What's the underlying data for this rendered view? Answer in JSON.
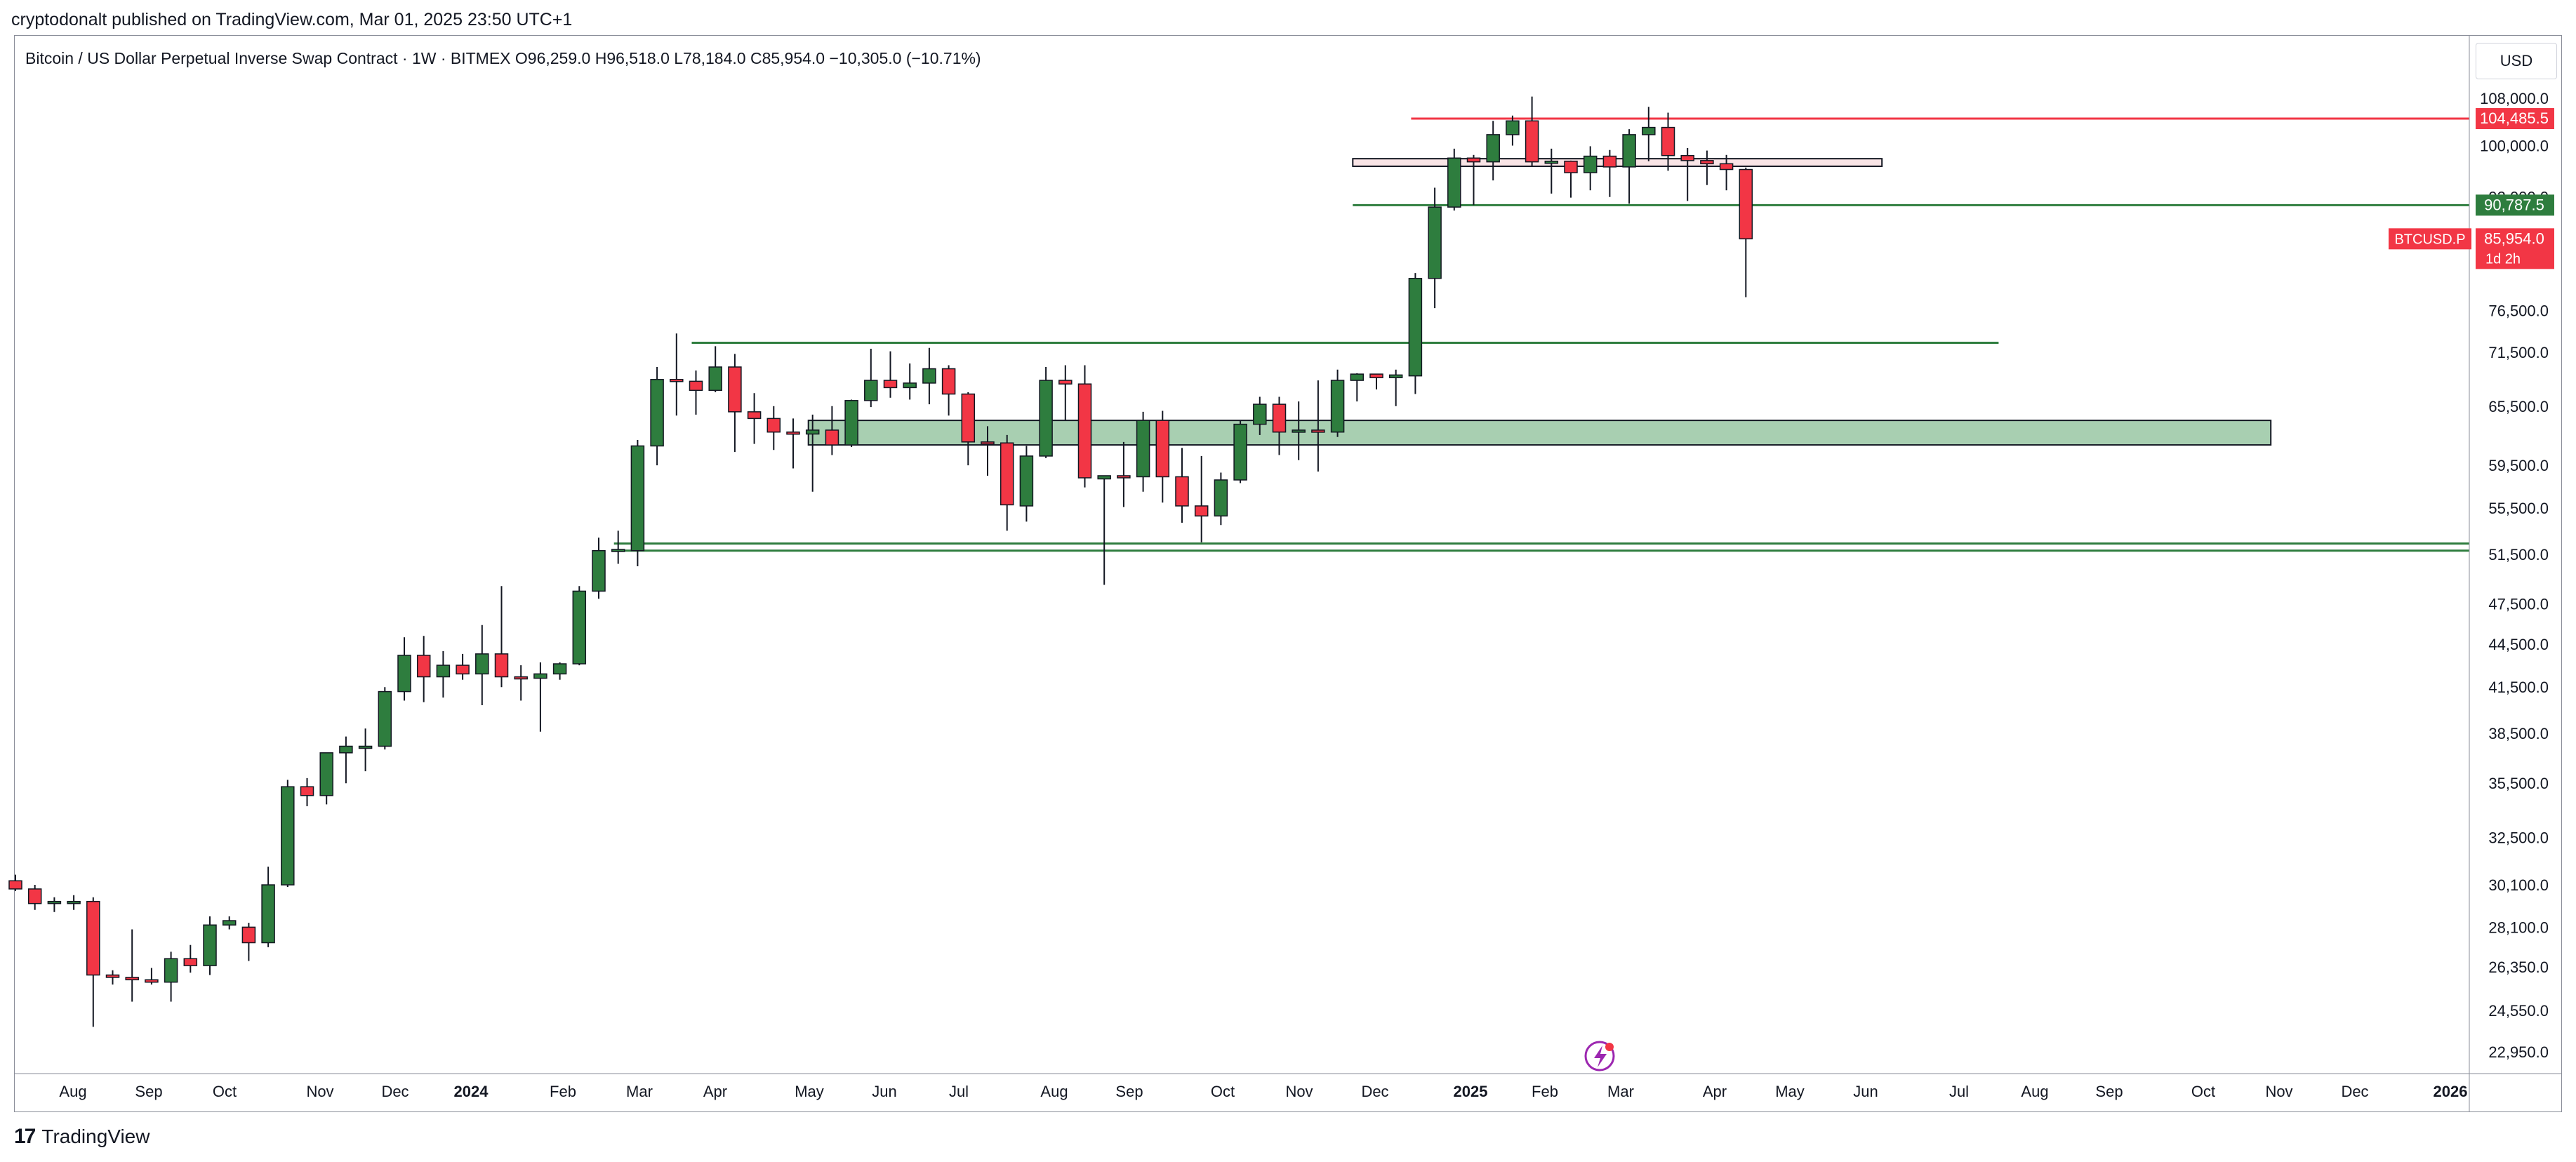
{
  "header": {
    "published": "cryptodonalt published on TradingView.com, Mar 01, 2025 23:50 UTC+1"
  },
  "symbol_info": {
    "text": "Bitcoin / US Dollar Perpetual Inverse Swap Contract · 1W · BITMEX  O96,259.0  H96,518.0  L78,184.0  C85,954.0  −10,305.0 (−10.71%)"
  },
  "currency_button": "USD",
  "footer": {
    "brand": "TradingView",
    "logo_glyph": "17"
  },
  "colors": {
    "up": "#2e7d3e",
    "down": "#f23645",
    "line_green": "#2e7d3e",
    "line_red": "#f23645",
    "zone_fill": "#a8cfb1",
    "axis_text": "#131722"
  },
  "chart_data": {
    "type": "candlestick",
    "interval": "1W",
    "y_scale": "log",
    "yticks": [
      "108,000.0",
      "100,000.0",
      "92,000.0",
      "76,500.0",
      "71,500.0",
      "65,500.0",
      "59,500.0",
      "55,500.0",
      "51,500.0",
      "47,500.0",
      "44,500.0",
      "41,500.0",
      "38,500.0",
      "35,500.0",
      "32,500.0",
      "30,100.0",
      "28,100.0",
      "26,350.0",
      "24,550.0",
      "22,950.0"
    ],
    "xticks": [
      "Aug",
      "Sep",
      "Oct",
      "Nov",
      "Dec",
      "2024",
      "Feb",
      "Mar",
      "Apr",
      "May",
      "Jun",
      "Jul",
      "Aug",
      "Sep",
      "Oct",
      "Nov",
      "Dec",
      "2025",
      "Feb",
      "Mar",
      "Apr",
      "May",
      "Jun",
      "Jul",
      "Aug",
      "Sep",
      "Oct",
      "Nov",
      "Dec",
      "2026"
    ],
    "candles": [
      [
        30300,
        30600,
        29800,
        29900
      ],
      [
        29900,
        30100,
        28900,
        29200
      ],
      [
        29200,
        29500,
        28800,
        29300
      ],
      [
        29300,
        29600,
        28900,
        29300
      ],
      [
        29300,
        29500,
        23900,
        26000
      ],
      [
        26000,
        26200,
        25600,
        25900
      ],
      [
        25900,
        28000,
        24900,
        25800
      ],
      [
        25800,
        26300,
        25600,
        25700
      ],
      [
        25700,
        27000,
        24900,
        26700
      ],
      [
        26700,
        27300,
        26100,
        26400
      ],
      [
        26400,
        28600,
        26000,
        28200
      ],
      [
        28200,
        28600,
        28000,
        28400
      ],
      [
        28100,
        28300,
        26600,
        27400
      ],
      [
        27400,
        31000,
        27200,
        30100
      ],
      [
        30100,
        35700,
        30000,
        35300
      ],
      [
        35300,
        35800,
        34200,
        34800
      ],
      [
        34800,
        37300,
        34300,
        37300
      ],
      [
        37300,
        38300,
        35500,
        37700
      ],
      [
        37700,
        38800,
        36200,
        37700
      ],
      [
        37700,
        41500,
        37500,
        41200
      ],
      [
        41200,
        45000,
        40600,
        43700
      ],
      [
        43700,
        45100,
        40500,
        42200
      ],
      [
        42200,
        44000,
        40800,
        43000
      ],
      [
        43000,
        43800,
        42000,
        42400
      ],
      [
        42400,
        45900,
        40300,
        43800
      ],
      [
        43800,
        48900,
        41500,
        42200
      ],
      [
        42200,
        43000,
        40600,
        42100
      ],
      [
        42100,
        43200,
        38600,
        42400
      ],
      [
        42400,
        43200,
        42000,
        43100
      ],
      [
        43100,
        48900,
        43000,
        48500
      ],
      [
        48500,
        52900,
        47900,
        51800
      ],
      [
        51800,
        53500,
        50700,
        51900
      ],
      [
        51800,
        62000,
        50500,
        61400
      ],
      [
        61400,
        69800,
        59500,
        68400
      ],
      [
        68400,
        73700,
        64500,
        68200
      ],
      [
        68200,
        69400,
        64600,
        67200
      ],
      [
        67200,
        72200,
        67000,
        69800
      ],
      [
        69800,
        71300,
        60800,
        64900
      ],
      [
        64900,
        66900,
        61600,
        64200
      ],
      [
        64200,
        65500,
        61000,
        62800
      ],
      [
        62800,
        64200,
        59200,
        62600
      ],
      [
        62600,
        64600,
        57000,
        63000
      ],
      [
        63000,
        65500,
        60500,
        61500
      ],
      [
        61500,
        66200,
        61300,
        66100
      ],
      [
        66100,
        71900,
        65400,
        68300
      ],
      [
        68300,
        71600,
        66400,
        67500
      ],
      [
        67500,
        70200,
        66200,
        68000
      ],
      [
        68000,
        72000,
        65700,
        69600
      ],
      [
        69600,
        70000,
        64500,
        66800
      ],
      [
        66800,
        67000,
        59500,
        61800
      ],
      [
        61800,
        63400,
        58500,
        61700
      ],
      [
        61700,
        62500,
        53500,
        55800
      ],
      [
        55700,
        61400,
        54300,
        60400
      ],
      [
        60400,
        69800,
        60200,
        68300
      ],
      [
        68300,
        70000,
        64000,
        67900
      ],
      [
        67900,
        70000,
        57400,
        58300
      ],
      [
        58200,
        58500,
        49000,
        58500
      ],
      [
        58500,
        61800,
        55600,
        58400
      ],
      [
        58400,
        64900,
        57000,
        64000
      ],
      [
        64000,
        65000,
        56000,
        58400
      ],
      [
        58400,
        61200,
        54200,
        55700
      ],
      [
        55700,
        60400,
        52500,
        54800
      ],
      [
        54800,
        58800,
        54000,
        58100
      ],
      [
        58100,
        64000,
        57800,
        63600
      ],
      [
        63600,
        66500,
        62500,
        65700
      ],
      [
        65700,
        66500,
        60500,
        62800
      ],
      [
        62800,
        66000,
        60000,
        63000
      ],
      [
        63000,
        68300,
        58900,
        62800
      ],
      [
        62800,
        69500,
        62300,
        68300
      ],
      [
        68300,
        69100,
        66000,
        69000
      ],
      [
        69000,
        69000,
        67300,
        68600
      ],
      [
        68600,
        69500,
        65500,
        68900
      ],
      [
        68800,
        81300,
        66800,
        80600
      ],
      [
        80600,
        93400,
        76800,
        90500
      ],
      [
        90500,
        99500,
        90000,
        98000
      ],
      [
        98000,
        98500,
        90800,
        97400
      ],
      [
        97400,
        104100,
        94500,
        101800
      ],
      [
        101800,
        105000,
        100000,
        104100
      ],
      [
        104100,
        108300,
        96700,
        97400
      ],
      [
        97400,
        99500,
        92500,
        97500
      ],
      [
        97500,
        97600,
        91900,
        95700
      ],
      [
        95700,
        99900,
        93000,
        98300
      ],
      [
        98300,
        99300,
        92000,
        96600
      ],
      [
        96600,
        102700,
        91000,
        101800
      ],
      [
        101800,
        106500,
        97500,
        103000
      ],
      [
        103000,
        105500,
        96000,
        98400
      ],
      [
        98400,
        99600,
        91400,
        97600
      ],
      [
        97600,
        99200,
        93800,
        97100
      ],
      [
        97100,
        98500,
        93000,
        96200
      ],
      [
        96200,
        96500,
        78184,
        85954
      ]
    ],
    "levels": [
      {
        "value": 104485.5,
        "color": "red",
        "label": "104,485.5",
        "x_start_week": 72,
        "x_end_week": "axis"
      },
      {
        "value": 90787.5,
        "color": "green",
        "label": "90,787.5",
        "x_start_week": 69,
        "x_end_week": "axis"
      },
      {
        "value": 72600,
        "color": "green",
        "x_start_week": 35,
        "x_end_week": 102
      },
      {
        "value": 52400,
        "color": "green",
        "x_start_week": 31,
        "x_end_week": "axis"
      },
      {
        "value": 51800,
        "color": "green",
        "x_start_week": 31,
        "x_end_week": "axis"
      }
    ],
    "zones": [
      {
        "low": 96700,
        "high": 97900,
        "x_start_week": 69,
        "x_end_week": 96,
        "fill": "#f9e4e6",
        "stroke": "#131722"
      },
      {
        "low": 61500,
        "high": 64000,
        "x_start_week": 41,
        "x_end_week": 116,
        "fill": "#a8cfb1",
        "stroke": "#131722"
      }
    ],
    "price_labels": [
      {
        "text": "104,485.5",
        "value": 104485.5,
        "bg": "#f23645"
      },
      {
        "text": "90,787.5",
        "value": 90787.5,
        "bg": "#2e7d3e"
      },
      {
        "text": "85,954.0",
        "sub": "1d 2h",
        "value": 85954,
        "bg": "#f23645",
        "symbol": "BTCUSD.P"
      }
    ]
  }
}
